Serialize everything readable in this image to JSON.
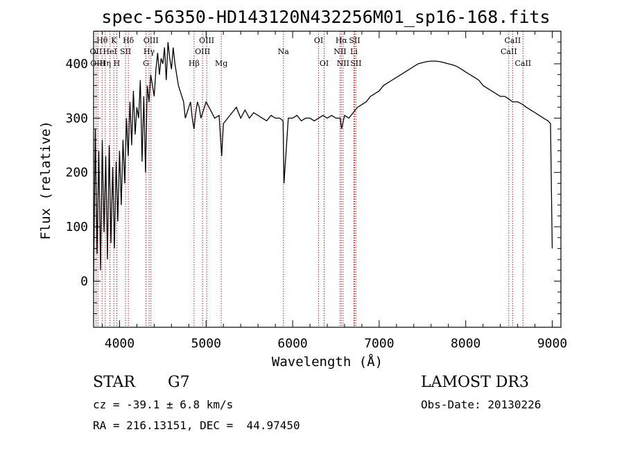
{
  "chart_data": {
    "type": "line",
    "title": "spec-56350-HD143120N432256M01_sp16-168.fits",
    "xlabel": "Wavelength (Å)",
    "ylabel": "Flux (relative)",
    "xlim": [
      3700,
      9100
    ],
    "ylim": [
      -85,
      460
    ],
    "xticks": [
      4000,
      5000,
      6000,
      7000,
      8000,
      9000
    ],
    "yticks": [
      0,
      100,
      200,
      300,
      400
    ],
    "grid": false,
    "line_color": "#000000",
    "marker_color": "#b22222",
    "series": [
      {
        "x": [
          3700,
          3720,
          3740,
          3760,
          3780,
          3800,
          3820,
          3840,
          3860,
          3880,
          3900,
          3920,
          3940,
          3960,
          3980,
          4000,
          4020,
          4040,
          4060,
          4080,
          4100,
          4120,
          4140,
          4160,
          4180,
          4200,
          4220,
          4240,
          4260,
          4280,
          4300,
          4320,
          4340,
          4360,
          4380,
          4400,
          4420,
          4440,
          4460,
          4480,
          4500,
          4520,
          4540,
          4560,
          4580,
          4600,
          4620,
          4640,
          4660,
          4680,
          4700,
          4720,
          4740,
          4760,
          4780,
          4800,
          4820,
          4840,
          4860,
          4880,
          4900,
          4920,
          4940,
          4960,
          4980,
          5000,
          5050,
          5100,
          5150,
          5180,
          5200,
          5250,
          5300,
          5350,
          5400,
          5450,
          5500,
          5550,
          5600,
          5650,
          5700,
          5750,
          5800,
          5850,
          5890,
          5900,
          5950,
          6000,
          6050,
          6100,
          6150,
          6200,
          6250,
          6300,
          6350,
          6400,
          6450,
          6500,
          6550,
          6565,
          6600,
          6650,
          6700,
          6750,
          6800,
          6850,
          6900,
          6950,
          7000,
          7050,
          7100,
          7150,
          7200,
          7250,
          7300,
          7350,
          7400,
          7450,
          7500,
          7550,
          7600,
          7650,
          7700,
          7750,
          7800,
          7850,
          7900,
          7950,
          8000,
          8050,
          8100,
          8150,
          8200,
          8250,
          8300,
          8350,
          8400,
          8450,
          8500,
          8540,
          8600,
          8660,
          8700,
          8750,
          8800,
          8850,
          8900,
          8950,
          8980,
          9000
        ],
        "y": [
          0,
          280,
          50,
          240,
          20,
          260,
          90,
          230,
          40,
          250,
          70,
          210,
          60,
          220,
          110,
          240,
          140,
          260,
          180,
          300,
          230,
          330,
          250,
          350,
          270,
          320,
          300,
          370,
          220,
          340,
          200,
          360,
          330,
          380,
          360,
          340,
          390,
          420,
          380,
          410,
          400,
          430,
          370,
          440,
          410,
          390,
          430,
          400,
          380,
          360,
          350,
          340,
          330,
          300,
          310,
          320,
          330,
          300,
          280,
          310,
          330,
          320,
          300,
          310,
          320,
          330,
          315,
          300,
          305,
          230,
          290,
          300,
          310,
          320,
          300,
          315,
          300,
          310,
          305,
          300,
          295,
          305,
          300,
          300,
          295,
          180,
          300,
          300,
          305,
          295,
          300,
          300,
          295,
          300,
          305,
          300,
          305,
          300,
          300,
          280,
          305,
          300,
          310,
          320,
          325,
          330,
          340,
          345,
          350,
          360,
          365,
          370,
          375,
          380,
          385,
          390,
          395,
          400,
          402,
          404,
          405,
          405,
          404,
          402,
          400,
          398,
          395,
          390,
          385,
          380,
          375,
          370,
          360,
          355,
          350,
          345,
          340,
          340,
          335,
          330,
          330,
          325,
          320,
          315,
          310,
          305,
          300,
          295,
          290,
          60
        ]
      }
    ],
    "emission_lines": [
      {
        "label": "Hθ",
        "wavelength": 3798,
        "label_row": 1
      },
      {
        "label": "OII",
        "wavelength": 3727,
        "label_row": 2
      },
      {
        "label": "OIII",
        "wavelength": 3750,
        "label_row": 3
      },
      {
        "label": "K",
        "wavelength": 3934,
        "label_row": 1
      },
      {
        "label": "HeI",
        "wavelength": 3889,
        "label_row": 2
      },
      {
        "label": "Hη",
        "wavelength": 3835,
        "label_row": 3
      },
      {
        "label": "Hδ",
        "wavelength": 4102,
        "label_row": 1
      },
      {
        "label": "SII",
        "wavelength": 4069,
        "label_row": 2
      },
      {
        "label": "H",
        "wavelength": 3968,
        "label_row": 3
      },
      {
        "label": "OIII",
        "wavelength": 4363,
        "label_row": 1
      },
      {
        "label": "Hγ",
        "wavelength": 4341,
        "label_row": 2
      },
      {
        "label": "G",
        "wavelength": 4305,
        "label_row": 3
      },
      {
        "label": "OIII",
        "wavelength": 5007,
        "label_row": 1
      },
      {
        "label": "OIII",
        "wavelength": 4959,
        "label_row": 2
      },
      {
        "label": "Hβ",
        "wavelength": 4861,
        "label_row": 3
      },
      {
        "label": "Mg",
        "wavelength": 5175,
        "label_row": 3
      },
      {
        "label": "Na",
        "wavelength": 5893,
        "label_row": 2
      },
      {
        "label": "OI",
        "wavelength": 6300,
        "label_row": 1
      },
      {
        "label": "OI",
        "wavelength": 6364,
        "label_row": 3
      },
      {
        "label": "Hα",
        "wavelength": 6563,
        "label_row": 1
      },
      {
        "label": "NII",
        "wavelength": 6548,
        "label_row": 2
      },
      {
        "label": "NII",
        "wavelength": 6583,
        "label_row": 3
      },
      {
        "label": "SII",
        "wavelength": 6716,
        "label_row": 1
      },
      {
        "label": "Li",
        "wavelength": 6708,
        "label_row": 2
      },
      {
        "label": "SII",
        "wavelength": 6731,
        "label_row": 3
      },
      {
        "label": "CaII",
        "wavelength": 8542,
        "label_row": 1
      },
      {
        "label": "CaII",
        "wavelength": 8498,
        "label_row": 2
      },
      {
        "label": "CaII",
        "wavelength": 8662,
        "label_row": 3
      }
    ]
  },
  "info": {
    "object_type": "STAR",
    "subclass": "G7",
    "cz": "cz = -39.1 ± 6.8 km/s",
    "coords": "RA = 216.13151, DEC =  44.97450",
    "survey": "LAMOST DR3",
    "obs_date": "Obs-Date: 20130226"
  }
}
